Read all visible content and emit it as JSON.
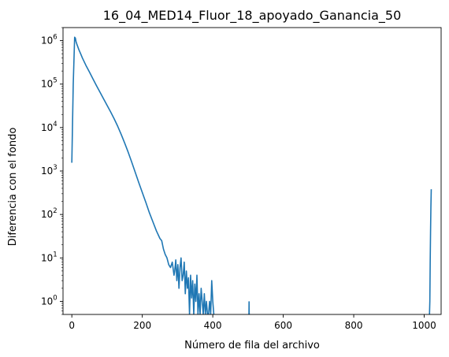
{
  "chart_data": {
    "type": "line",
    "title": "16_04_MED14_Fluor_18_apoyado_Ganancia_50",
    "xlabel": "Número de fila del archivo",
    "ylabel": "Diferencia con el fondo",
    "xlim": [
      -25,
      1048
    ],
    "ylim": [
      0.5,
      2000000
    ],
    "yscale": "log",
    "grid": false,
    "x_ticks": [
      0,
      200,
      400,
      600,
      800,
      1000
    ],
    "y_ticks": [
      {
        "value": 1,
        "exponent": "0"
      },
      {
        "value": 10,
        "exponent": "1"
      },
      {
        "value": 100,
        "exponent": "2"
      },
      {
        "value": 1000,
        "exponent": "3"
      },
      {
        "value": 10000,
        "exponent": "4"
      },
      {
        "value": 100000,
        "exponent": "5"
      },
      {
        "value": 1000000,
        "exponent": "6"
      }
    ],
    "y_tick_base": "10",
    "series_color": "#1f77b4",
    "series": [
      {
        "x": [
          0,
          4,
          8,
          10,
          12,
          15,
          20,
          25,
          30,
          40,
          50,
          60,
          70,
          80,
          90,
          100,
          110,
          120,
          130,
          140,
          150,
          160,
          170,
          180,
          190,
          200,
          210,
          220,
          230,
          240,
          250,
          255,
          260,
          265,
          270,
          275,
          280,
          285,
          290
        ],
        "y": [
          1550,
          100000,
          1200000,
          1150000,
          950000,
          800000,
          620000,
          500000,
          400000,
          270000,
          190000,
          132000,
          92000,
          65000,
          46000,
          32500,
          23000,
          16000,
          10800,
          7000,
          4400,
          2700,
          1600,
          930,
          540,
          320,
          190,
          110,
          68,
          42,
          28,
          25,
          16,
          12,
          10,
          7,
          6,
          8,
          4
        ]
      }
    ],
    "noise": {
      "x": [
        292,
        295,
        298,
        301,
        304,
        307,
        310,
        313,
        316,
        319,
        322,
        325,
        328,
        331,
        334,
        337,
        340,
        343,
        346,
        349,
        352,
        355,
        358,
        361,
        364,
        367,
        370,
        373,
        376,
        379,
        382,
        385,
        388,
        391,
        394,
        397,
        400,
        403
      ],
      "y": [
        5,
        9,
        3,
        7,
        2,
        6,
        10,
        3,
        4,
        8,
        1.5,
        5,
        2,
        3.5,
        0.5,
        4,
        1.2,
        3,
        0.5,
        2.5,
        1,
        4,
        0.5,
        1.5,
        0.5,
        2,
        1,
        0.5,
        1.5,
        0.5,
        1,
        0.5,
        0.5,
        1,
        0.5,
        3,
        1,
        0.5
      ]
    },
    "spikes": [
      {
        "x": 503,
        "y": 1
      }
    ],
    "tail": {
      "x": [
        1015,
        1016,
        1017,
        1018,
        1019,
        1020
      ],
      "y": [
        0.5,
        1,
        8,
        40,
        150,
        380
      ]
    }
  }
}
